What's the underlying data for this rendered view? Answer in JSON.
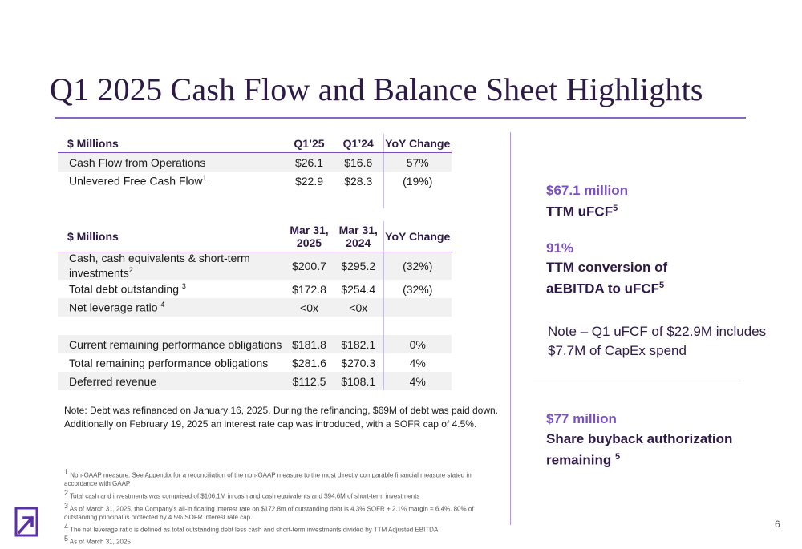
{
  "title": "Q1 2025 Cash Flow and Balance Sheet Highlights",
  "cash_flow_table": {
    "headers": [
      "$ Millions",
      "Q1’25",
      "Q1’24",
      "YoY Change"
    ],
    "rows": [
      {
        "label": "Cash Flow from Operations",
        "sup": "",
        "q1_25": "$26.1",
        "q1_24": "$16.6",
        "yoy": "57%"
      },
      {
        "label": "Unlevered Free Cash Flow",
        "sup": "1",
        "q1_25": "$22.9",
        "q1_24": "$28.3",
        "yoy": "(19%)"
      }
    ]
  },
  "balance_table": {
    "headers": [
      "$ Millions",
      "Mar 31, 2025",
      "Mar 31, 2024",
      "YoY Change"
    ],
    "rows": [
      {
        "label": "Cash, cash equivalents & short-term investments",
        "sup": "2",
        "a": "$200.7",
        "b": "$295.2",
        "yoy": "(32%)"
      },
      {
        "label": "Total debt outstanding ",
        "sup": "3",
        "a": "$172.8",
        "b": "$254.4",
        "yoy": "(32%)"
      },
      {
        "label": "Net leverage ratio ",
        "sup": "4",
        "a": "<0x",
        "b": "<0x",
        "yoy": ""
      },
      {
        "label": "",
        "sup": "",
        "a": "",
        "b": "",
        "yoy": ""
      },
      {
        "label": "Current remaining performance obligations",
        "sup": "",
        "a": "$181.8",
        "b": "$182.1",
        "yoy": "0%"
      },
      {
        "label": "Total remaining performance obligations",
        "sup": "",
        "a": "$281.6",
        "b": "$270.3",
        "yoy": "4%"
      },
      {
        "label": "Deferred revenue",
        "sup": "",
        "a": "$112.5",
        "b": "$108.1",
        "yoy": "4%"
      }
    ]
  },
  "debt_note": "Note: Debt was refinanced on January 16, 2025.   During the refinancing, $69M of debt was paid down. Additionally on February 19, 2025 an interest rate cap was introduced, with a SOFR cap of 4.5%.",
  "kpis": [
    {
      "value": "$67.1 million",
      "label": "TTM uFCF",
      "sup": "5"
    },
    {
      "value": "91%",
      "label": "TTM conversion of aEBITDA to uFCF",
      "sup": "5"
    },
    {
      "value": "$77 million",
      "label": "Share buyback authorization remaining ",
      "sup": "5"
    }
  ],
  "right_note": "Note – Q1 uFCF of $22.9M includes $7.7M of CapEx spend",
  "footnotes": [
    {
      "num": "1",
      "text": " Non-GAAP measure. See Appendix for a reconciliation of the non-GAAP measure to the most directly comparable financial measure stated in accordance with GAAP"
    },
    {
      "num": "2",
      "text": " Total cash and investments was comprised of $106.1M in cash and cash equivalents and $94.6M of short-term investments"
    },
    {
      "num": "3",
      "text": " As of March 31, 2025, the Company’s all-in floating interest rate on $172.8m of outstanding debt is 4.3% SOFR + 2.1% margin = 6.4%. 80% of outstanding principal is protected by 4.5% SOFR interest rate cap."
    },
    {
      "num": "4",
      "text": " The net leverage ratio is defined as total outstanding debt less cash and short-term investments divided by TTM Adjusted EBITDA."
    },
    {
      "num": "5",
      "text": " As of March 31, 2025"
    }
  ],
  "page_number": "6",
  "colors": {
    "accent": "#7b4fc4",
    "navy": "#2e1a47"
  },
  "logo_icon": "arrow-logo-icon"
}
